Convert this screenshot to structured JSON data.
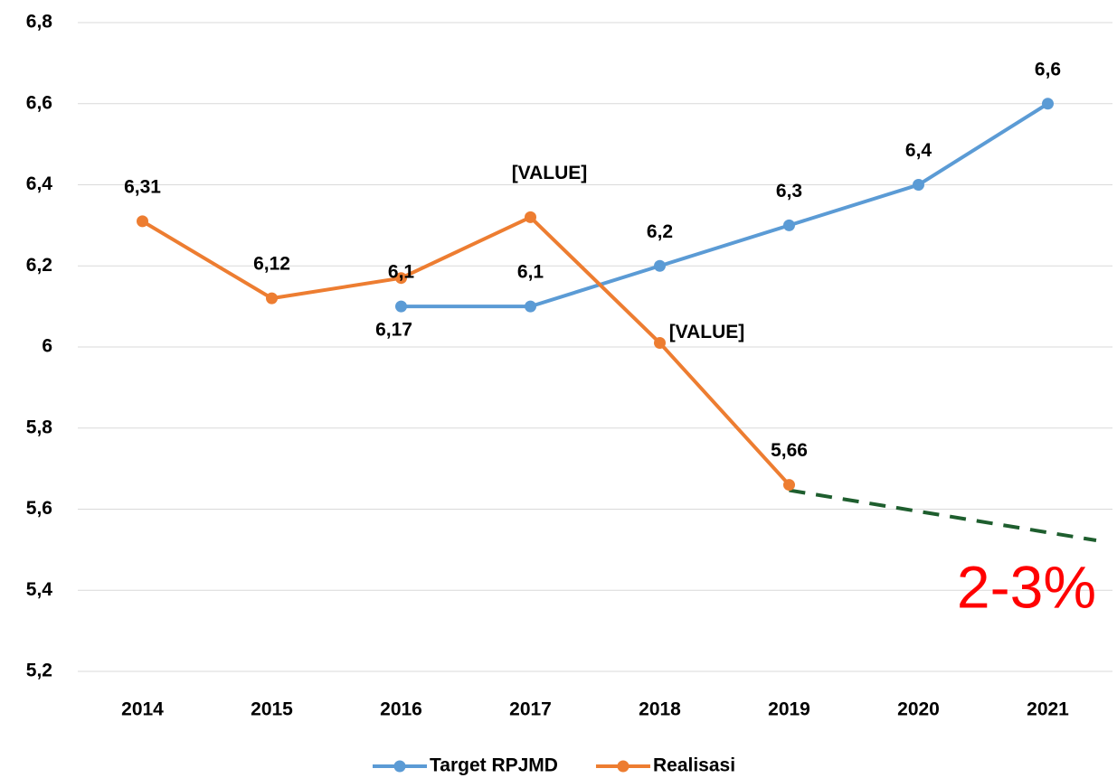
{
  "chart_data": {
    "type": "line",
    "categories": [
      "2014",
      "2015",
      "2016",
      "2017",
      "2018",
      "2019",
      "2020",
      "2021"
    ],
    "series": [
      {
        "name": "Target RPJMD",
        "color": "#5b9bd5",
        "values": [
          null,
          null,
          6.1,
          6.1,
          6.2,
          6.3,
          6.4,
          6.6
        ],
        "value_labels": [
          null,
          null,
          "6,1",
          "6,1",
          "6,2",
          "6,3",
          "6,4",
          "6,6"
        ]
      },
      {
        "name": "Realisasi",
        "color": "#ed7d31",
        "values": [
          6.31,
          6.12,
          6.17,
          6.32,
          6.01,
          5.66,
          null,
          null
        ],
        "value_labels": [
          "6,31",
          "6,12",
          "6,17",
          "[VALUE]",
          "[VALUE]",
          "5,66",
          null,
          null
        ]
      }
    ],
    "ylim": [
      5.2,
      6.8
    ],
    "yticks": [
      {
        "value": 5.2,
        "label": "5,2"
      },
      {
        "value": 5.4,
        "label": "5,4"
      },
      {
        "value": 5.6,
        "label": "5,6"
      },
      {
        "value": 5.8,
        "label": "5,8"
      },
      6,
      {
        "value": 6.2,
        "label": "6,2"
      },
      {
        "value": 6.4,
        "label": "6,4"
      },
      {
        "value": 6.6,
        "label": "6,6"
      },
      {
        "value": 6.8,
        "label": "6,8"
      }
    ],
    "grid": true,
    "legend": "bottom",
    "annotation": "2-3%"
  }
}
